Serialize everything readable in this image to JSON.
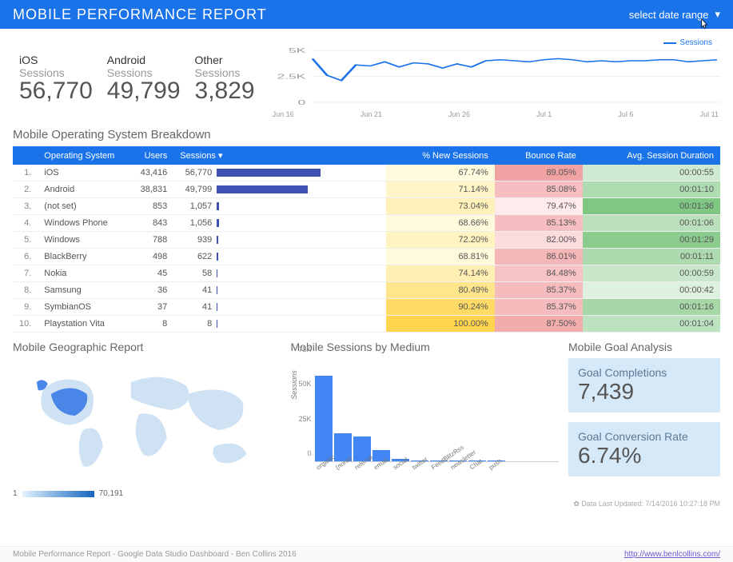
{
  "header": {
    "title": "MOBILE PERFORMANCE REPORT",
    "date_range_label": "select date range"
  },
  "devices": [
    {
      "key": "ios",
      "label": "iOS",
      "sessions_label": "Sessions",
      "value": "56,770"
    },
    {
      "key": "android",
      "label": "Android",
      "sessions_label": "Sessions",
      "value": "49,799"
    },
    {
      "key": "other",
      "label": "Other",
      "sessions_label": "Sessions",
      "value": "3,829"
    }
  ],
  "sparkline": {
    "legend_label": "Sessions",
    "line_color": "#1a73e8",
    "y_ticks": [
      "0",
      "2.5K",
      "5K"
    ],
    "y_max": 5000,
    "points": [
      4200,
      2600,
      2100,
      3600,
      3500,
      3900,
      3400,
      3800,
      3700,
      3300,
      3700,
      3400,
      4000,
      4100,
      4000,
      3900,
      4100,
      4200,
      4100,
      3900,
      4000,
      3900,
      4000,
      4000,
      4100,
      4100,
      3900,
      4000,
      4100
    ],
    "x_labels": [
      "Jun 16",
      "Jun 21",
      "Jun 26",
      "Jul 1",
      "Jul 6",
      "Jul 11"
    ]
  },
  "os_section_title": "Mobile Operating System Breakdown",
  "os_table": {
    "columns": [
      "",
      "Operating System",
      "Users",
      "Sessions ▾",
      "% New Sessions",
      "Bounce Rate",
      "Avg. Session Duration"
    ],
    "max_sessions": 56770,
    "bar_color": "#3f51b5",
    "heat_colors": {
      "new_sessions": {
        "low": "#fffde7",
        "high": "#ffd54f"
      },
      "bounce": {
        "low": "#ffebee",
        "high": "#ef9a9a"
      },
      "duration": {
        "low": "#e8f5e9",
        "high": "#81c784"
      }
    },
    "rows": [
      {
        "idx": "1.",
        "name": "iOS",
        "users": "43,416",
        "sessions": "56,770",
        "sessions_n": 56770,
        "new_pct": "67.74%",
        "new_heat": 0.05,
        "bounce": "89.05%",
        "bounce_heat": 0.9,
        "duration": "00:00:55",
        "dur_heat": 0.25
      },
      {
        "idx": "2.",
        "name": "Android",
        "users": "38,831",
        "sessions": "49,799",
        "sessions_n": 49799,
        "new_pct": "71.14%",
        "new_heat": 0.2,
        "bounce": "85.08%",
        "bounce_heat": 0.55,
        "duration": "00:01:10",
        "dur_heat": 0.55
      },
      {
        "idx": "3.",
        "name": "(not set)",
        "users": "853",
        "sessions": "1,057",
        "sessions_n": 1057,
        "new_pct": "73.04%",
        "new_heat": 0.3,
        "bounce": "79.47%",
        "bounce_heat": 0.0,
        "duration": "00:01:36",
        "dur_heat": 1.0
      },
      {
        "idx": "4.",
        "name": "Windows Phone",
        "users": "843",
        "sessions": "1,056",
        "sessions_n": 1056,
        "new_pct": "68.66%",
        "new_heat": 0.08,
        "bounce": "85.13%",
        "bounce_heat": 0.55,
        "duration": "00:01:06",
        "dur_heat": 0.45
      },
      {
        "idx": "5.",
        "name": "Windows",
        "users": "788",
        "sessions": "939",
        "sessions_n": 939,
        "new_pct": "72.20%",
        "new_heat": 0.25,
        "bounce": "82.00%",
        "bounce_heat": 0.2,
        "duration": "00:01:29",
        "dur_heat": 0.9
      },
      {
        "idx": "6.",
        "name": "BlackBerry",
        "users": "498",
        "sessions": "622",
        "sessions_n": 622,
        "new_pct": "68.81%",
        "new_heat": 0.08,
        "bounce": "86.01%",
        "bounce_heat": 0.65,
        "duration": "00:01:11",
        "dur_heat": 0.57
      },
      {
        "idx": "7.",
        "name": "Nokia",
        "users": "45",
        "sessions": "58",
        "sessions_n": 58,
        "new_pct": "74.14%",
        "new_heat": 0.35,
        "bounce": "84.48%",
        "bounce_heat": 0.5,
        "duration": "00:00:59",
        "dur_heat": 0.3
      },
      {
        "idx": "8.",
        "name": "Samsung",
        "users": "36",
        "sessions": "41",
        "sessions_n": 41,
        "new_pct": "80.49%",
        "new_heat": 0.6,
        "bounce": "85.37%",
        "bounce_heat": 0.58,
        "duration": "00:00:42",
        "dur_heat": 0.1
      },
      {
        "idx": "9.",
        "name": "SymbianOS",
        "users": "37",
        "sessions": "41",
        "sessions_n": 41,
        "new_pct": "90.24%",
        "new_heat": 0.85,
        "bounce": "85.37%",
        "bounce_heat": 0.58,
        "duration": "00:01:16",
        "dur_heat": 0.65
      },
      {
        "idx": "10.",
        "name": "Playstation Vita",
        "users": "8",
        "sessions": "8",
        "sessions_n": 8,
        "new_pct": "100.00%",
        "new_heat": 1.0,
        "bounce": "87.50%",
        "bounce_heat": 0.78,
        "duration": "00:01:04",
        "dur_heat": 0.42
      }
    ]
  },
  "geo": {
    "title": "Mobile Geographic Report",
    "legend_min": "1",
    "legend_max": "70,191"
  },
  "medium_chart": {
    "title": "Mobile Sessions by Medium",
    "y_title": "Sessions",
    "y_ticks": [
      "0",
      "25K",
      "50K",
      "75K"
    ],
    "y_max": 75000,
    "bar_color": "#4285f4",
    "bars": [
      {
        "label": "organic",
        "value": 62000
      },
      {
        "label": "(none)",
        "value": 20000
      },
      {
        "label": "referral",
        "value": 18000
      },
      {
        "label": "email",
        "value": 8000
      },
      {
        "label": "social",
        "value": 1500
      },
      {
        "label": "twitter",
        "value": 600
      },
      {
        "label": "FeedBlitzRss",
        "value": 300
      },
      {
        "label": "newsletter",
        "value": 200
      },
      {
        "label": "Chat",
        "value": 100
      },
      {
        "label": "push",
        "value": 50
      }
    ]
  },
  "goals": {
    "title": "Mobile Goal Analysis",
    "completions_label": "Goal Completions",
    "completions_value": "7,439",
    "conversion_label": "Goal Conversion Rate",
    "conversion_value": "6.74%",
    "card_bg": "#d6e9f8"
  },
  "footer": {
    "text": "Mobile Performance Report - Google Data Studio Dashboard - Ben Collins 2016",
    "link": "http://www.benlcollins.com/",
    "updated": "✿ Data Last Updated: 7/14/2016 10:27:18 PM"
  }
}
